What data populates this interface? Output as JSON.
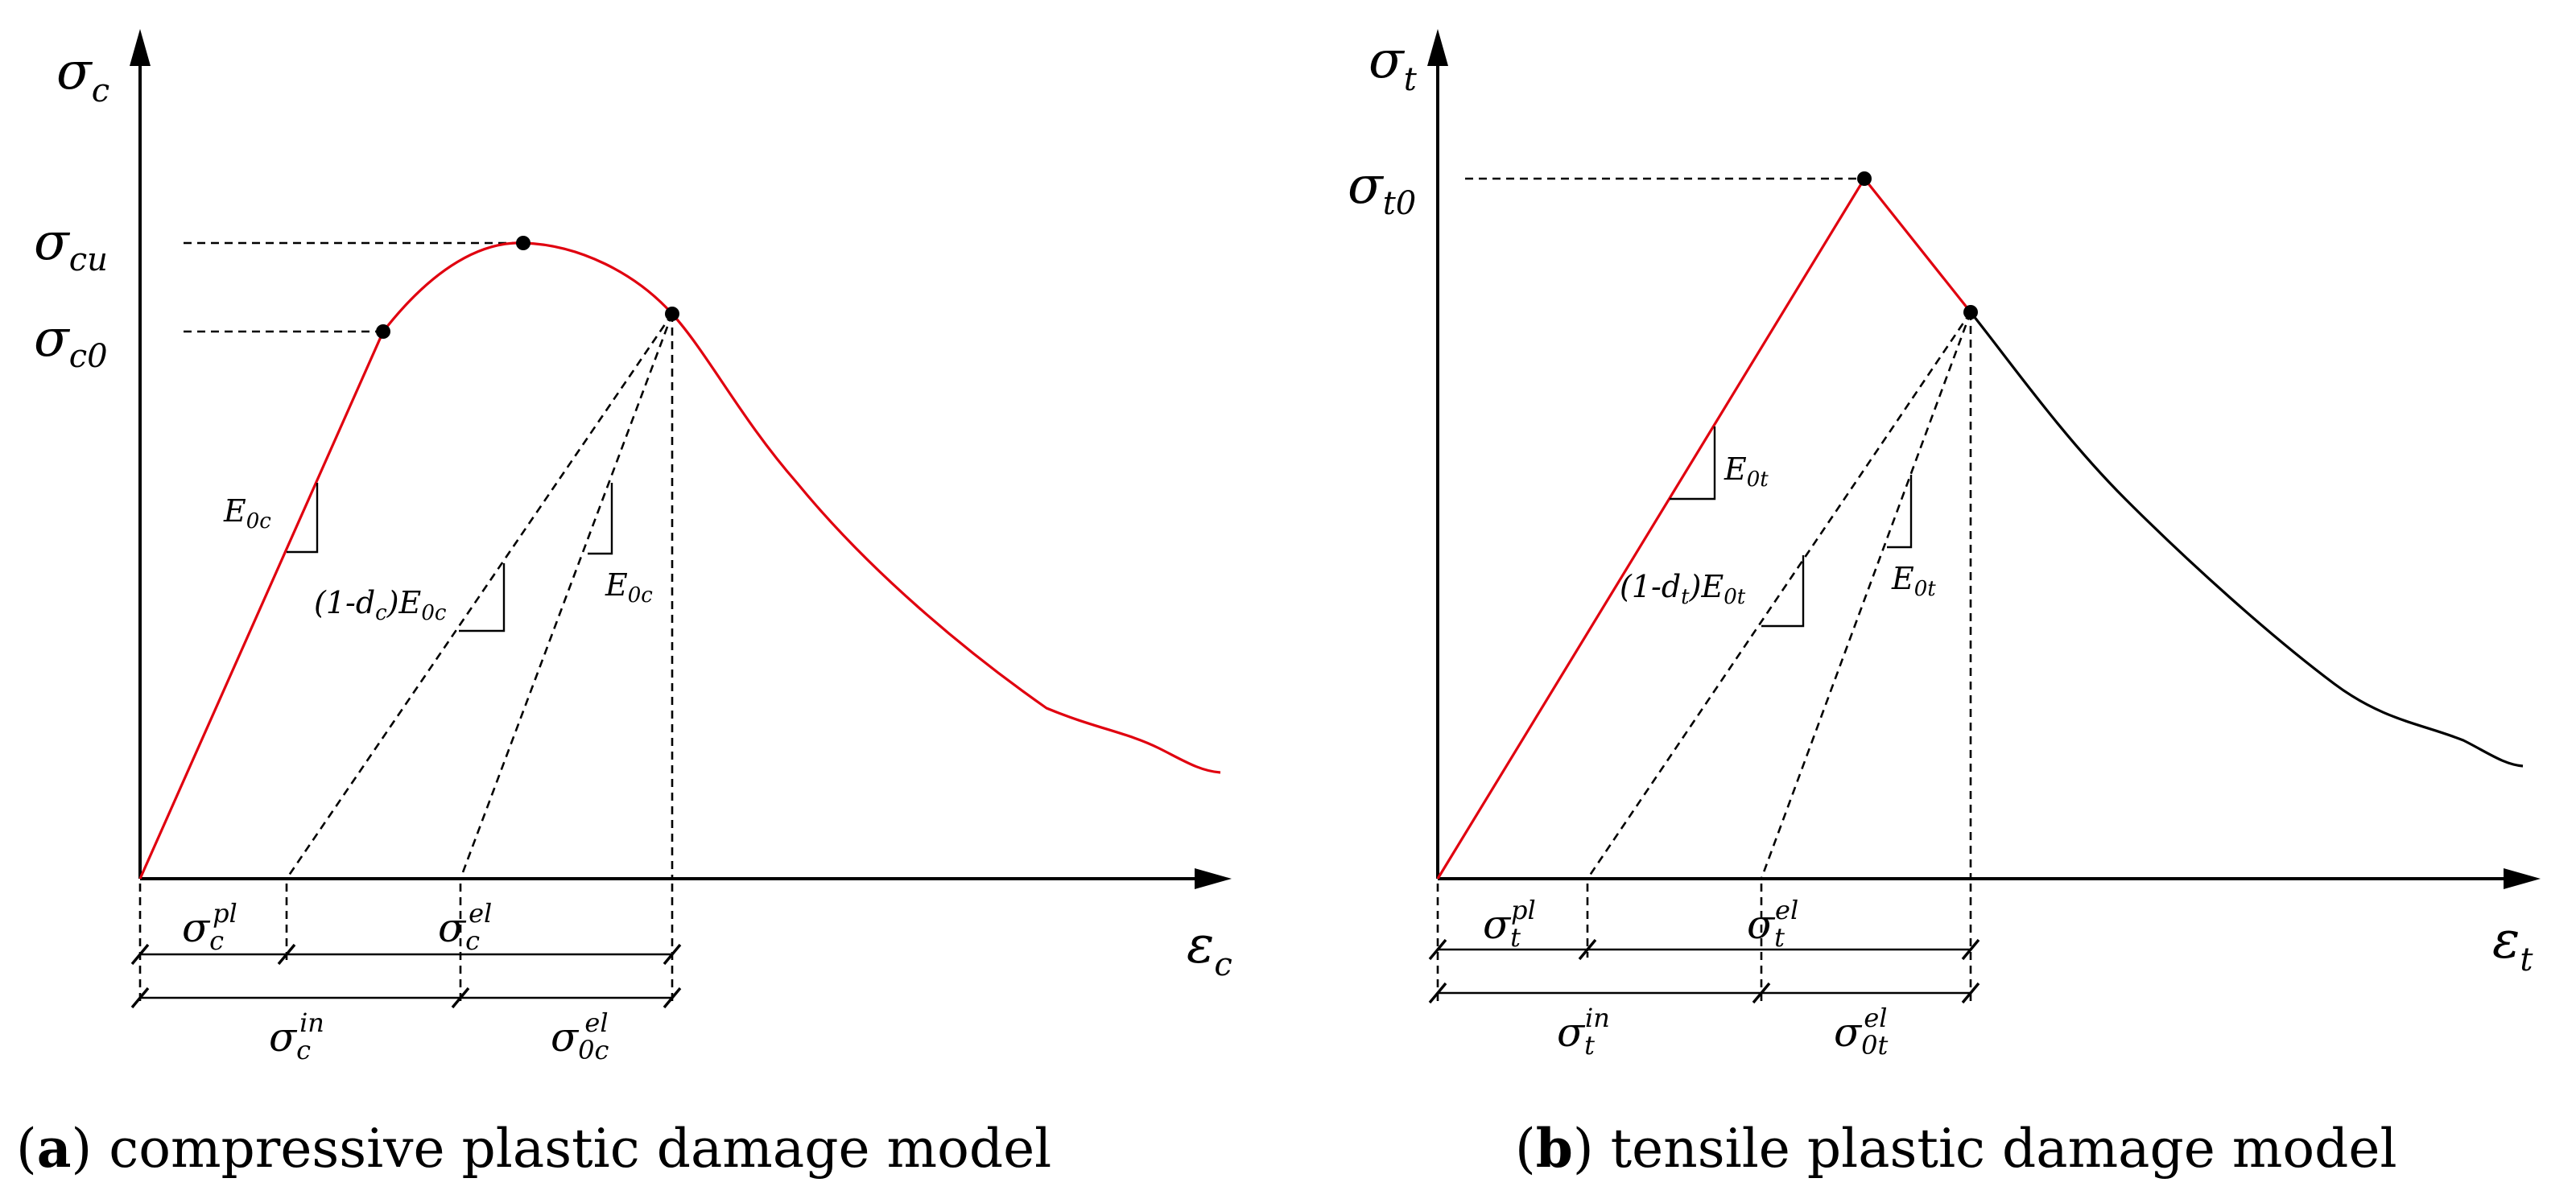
{
  "panel_a": {
    "y_axis_label": "σ",
    "y_axis_sub": "c",
    "x_axis_label": "ε",
    "x_axis_sub": "c",
    "sigma_cu": "σ",
    "sigma_cu_sub": "cu",
    "sigma_c0": "σ",
    "sigma_c0_sub": "c0",
    "e0c_1": "E",
    "e0c_1_sub": "0c",
    "damaged_prefix": "(1-d",
    "damaged_prefix_sub": "c",
    "damaged_suffix": ")E",
    "damaged_suffix_sub": "0c",
    "e0c_2": "E",
    "e0c_2_sub": "0c",
    "dim_pl": "σ",
    "dim_pl_sub": "c",
    "dim_pl_sup": "pl",
    "dim_el": "σ",
    "dim_el_sub": "c",
    "dim_el_sup": "el",
    "dim_in": "σ",
    "dim_in_sub": "c",
    "dim_in_sup": "in",
    "dim_0el": "σ",
    "dim_0el_sub": "0c",
    "dim_0el_sup": "el",
    "caption_label": "a",
    "caption_text": " compressive plastic damage model",
    "curve_color": "#e0000f"
  },
  "panel_b": {
    "y_axis_label": "σ",
    "y_axis_sub": "t",
    "x_axis_label": "ε",
    "x_axis_sub": "t",
    "sigma_t0": "σ",
    "sigma_t0_sub": "t0",
    "e0t_1": "E",
    "e0t_1_sub": "0t",
    "damaged_prefix": "(1-d",
    "damaged_prefix_sub": "t",
    "damaged_suffix": ")E",
    "damaged_suffix_sub": "0t",
    "e0t_2": "E",
    "e0t_2_sub": "0t",
    "dim_pl": "σ",
    "dim_pl_sub": "t",
    "dim_pl_sup": "pl",
    "dim_el": "σ",
    "dim_el_sub": "t",
    "dim_el_sup": "el",
    "dim_in": "σ",
    "dim_in_sub": "t",
    "dim_in_sup": "in",
    "dim_0el": "σ",
    "dim_0el_sub": "0t",
    "dim_0el_sup": "el",
    "caption_label": "b",
    "caption_text": " tensile plastic damage model",
    "rising_color": "#e0000f",
    "softening_color": "#000000"
  }
}
